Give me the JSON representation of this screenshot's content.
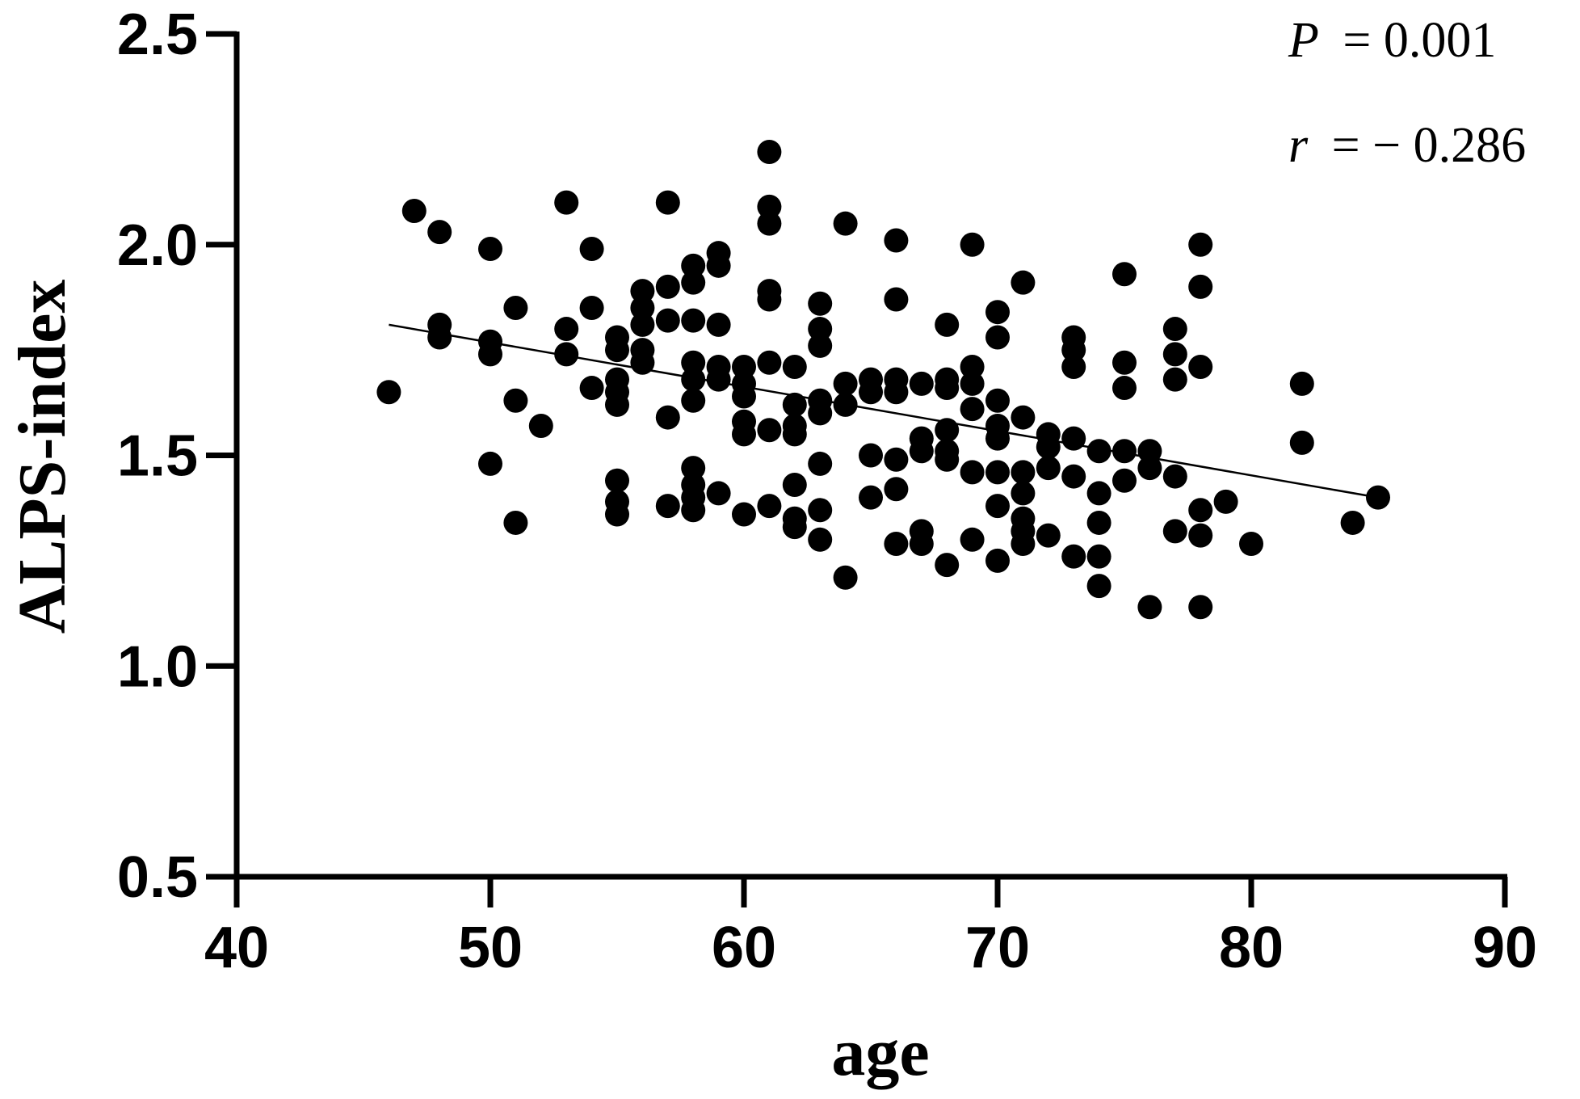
{
  "chart_data": {
    "type": "scatter",
    "xlabel": "age",
    "ylabel": "ALPS-index",
    "xlim": [
      40,
      90
    ],
    "ylim": [
      0.5,
      2.5
    ],
    "x_ticks": [
      "40",
      "50",
      "60",
      "70",
      "80",
      "90"
    ],
    "y_ticks": [
      "0.5",
      "1.0",
      "1.5",
      "2.0",
      "2.5"
    ],
    "grid": false,
    "marker_color": "#000000",
    "stats": {
      "p_label": "P",
      "p_value": "= 0.001",
      "r_label": "r",
      "r_value": "= − 0.286"
    },
    "trendline": {
      "x": [
        46,
        85
      ],
      "y": [
        1.81,
        1.4
      ]
    },
    "points": [
      [
        46,
        1.65
      ],
      [
        47,
        2.08
      ],
      [
        48,
        2.03
      ],
      [
        48,
        1.81
      ],
      [
        48,
        1.78
      ],
      [
        50,
        1.99
      ],
      [
        50,
        1.77
      ],
      [
        50,
        1.74
      ],
      [
        50,
        1.48
      ],
      [
        51,
        1.85
      ],
      [
        51,
        1.63
      ],
      [
        51,
        1.34
      ],
      [
        52,
        1.57
      ],
      [
        53,
        2.1
      ],
      [
        53,
        1.8
      ],
      [
        53,
        1.74
      ],
      [
        54,
        1.99
      ],
      [
        54,
        1.85
      ],
      [
        54,
        1.66
      ],
      [
        55,
        1.78
      ],
      [
        55,
        1.75
      ],
      [
        55,
        1.68
      ],
      [
        55,
        1.65
      ],
      [
        55,
        1.62
      ],
      [
        55,
        1.44
      ],
      [
        55,
        1.39
      ],
      [
        55,
        1.36
      ],
      [
        56,
        1.89
      ],
      [
        56,
        1.85
      ],
      [
        56,
        1.81
      ],
      [
        56,
        1.75
      ],
      [
        56,
        1.72
      ],
      [
        57,
        2.1
      ],
      [
        57,
        1.9
      ],
      [
        57,
        1.82
      ],
      [
        57,
        1.59
      ],
      [
        57,
        1.38
      ],
      [
        58,
        1.95
      ],
      [
        58,
        1.91
      ],
      [
        58,
        1.82
      ],
      [
        58,
        1.72
      ],
      [
        58,
        1.68
      ],
      [
        58,
        1.63
      ],
      [
        58,
        1.47
      ],
      [
        58,
        1.43
      ],
      [
        58,
        1.4
      ],
      [
        58,
        1.37
      ],
      [
        59,
        1.98
      ],
      [
        59,
        1.95
      ],
      [
        59,
        1.81
      ],
      [
        59,
        1.71
      ],
      [
        59,
        1.68
      ],
      [
        59,
        1.41
      ],
      [
        60,
        1.71
      ],
      [
        60,
        1.67
      ],
      [
        60,
        1.64
      ],
      [
        60,
        1.58
      ],
      [
        60,
        1.55
      ],
      [
        60,
        1.36
      ],
      [
        61,
        2.22
      ],
      [
        61,
        2.09
      ],
      [
        61,
        2.05
      ],
      [
        61,
        1.89
      ],
      [
        61,
        1.87
      ],
      [
        61,
        1.72
      ],
      [
        61,
        1.56
      ],
      [
        61,
        1.38
      ],
      [
        62,
        1.71
      ],
      [
        62,
        1.62
      ],
      [
        62,
        1.57
      ],
      [
        62,
        1.55
      ],
      [
        62,
        1.43
      ],
      [
        62,
        1.35
      ],
      [
        62,
        1.33
      ],
      [
        63,
        1.86
      ],
      [
        63,
        1.8
      ],
      [
        63,
        1.76
      ],
      [
        63,
        1.63
      ],
      [
        63,
        1.6
      ],
      [
        63,
        1.48
      ],
      [
        63,
        1.37
      ],
      [
        63,
        1.3
      ],
      [
        64,
        2.05
      ],
      [
        64,
        1.67
      ],
      [
        64,
        1.62
      ],
      [
        64,
        1.21
      ],
      [
        65,
        1.68
      ],
      [
        65,
        1.65
      ],
      [
        65,
        1.5
      ],
      [
        65,
        1.4
      ],
      [
        66,
        2.01
      ],
      [
        66,
        1.87
      ],
      [
        66,
        1.68
      ],
      [
        66,
        1.65
      ],
      [
        66,
        1.49
      ],
      [
        66,
        1.42
      ],
      [
        66,
        1.29
      ],
      [
        67,
        1.67
      ],
      [
        67,
        1.54
      ],
      [
        67,
        1.51
      ],
      [
        67,
        1.32
      ],
      [
        67,
        1.29
      ],
      [
        68,
        1.81
      ],
      [
        68,
        1.68
      ],
      [
        68,
        1.66
      ],
      [
        68,
        1.56
      ],
      [
        68,
        1.51
      ],
      [
        68,
        1.49
      ],
      [
        68,
        1.24
      ],
      [
        69,
        2.0
      ],
      [
        69,
        1.71
      ],
      [
        69,
        1.67
      ],
      [
        69,
        1.61
      ],
      [
        69,
        1.46
      ],
      [
        69,
        1.3
      ],
      [
        70,
        1.84
      ],
      [
        70,
        1.78
      ],
      [
        70,
        1.63
      ],
      [
        70,
        1.57
      ],
      [
        70,
        1.54
      ],
      [
        70,
        1.46
      ],
      [
        70,
        1.38
      ],
      [
        70,
        1.25
      ],
      [
        71,
        1.91
      ],
      [
        71,
        1.59
      ],
      [
        71,
        1.46
      ],
      [
        71,
        1.41
      ],
      [
        71,
        1.35
      ],
      [
        71,
        1.32
      ],
      [
        71,
        1.29
      ],
      [
        72,
        1.55
      ],
      [
        72,
        1.52
      ],
      [
        72,
        1.47
      ],
      [
        72,
        1.31
      ],
      [
        73,
        1.78
      ],
      [
        73,
        1.75
      ],
      [
        73,
        1.71
      ],
      [
        73,
        1.54
      ],
      [
        73,
        1.45
      ],
      [
        73,
        1.26
      ],
      [
        74,
        1.51
      ],
      [
        74,
        1.41
      ],
      [
        74,
        1.34
      ],
      [
        74,
        1.26
      ],
      [
        74,
        1.19
      ],
      [
        75,
        1.93
      ],
      [
        75,
        1.72
      ],
      [
        75,
        1.66
      ],
      [
        75,
        1.51
      ],
      [
        75,
        1.44
      ],
      [
        76,
        1.51
      ],
      [
        76,
        1.47
      ],
      [
        76,
        1.14
      ],
      [
        77,
        1.8
      ],
      [
        77,
        1.74
      ],
      [
        77,
        1.68
      ],
      [
        77,
        1.45
      ],
      [
        77,
        1.32
      ],
      [
        78,
        2.0
      ],
      [
        78,
        1.9
      ],
      [
        78,
        1.71
      ],
      [
        78,
        1.37
      ],
      [
        78,
        1.31
      ],
      [
        78,
        1.14
      ],
      [
        79,
        1.39
      ],
      [
        80,
        1.29
      ],
      [
        82,
        1.67
      ],
      [
        82,
        1.53
      ],
      [
        84,
        1.34
      ],
      [
        85,
        1.4
      ]
    ]
  }
}
